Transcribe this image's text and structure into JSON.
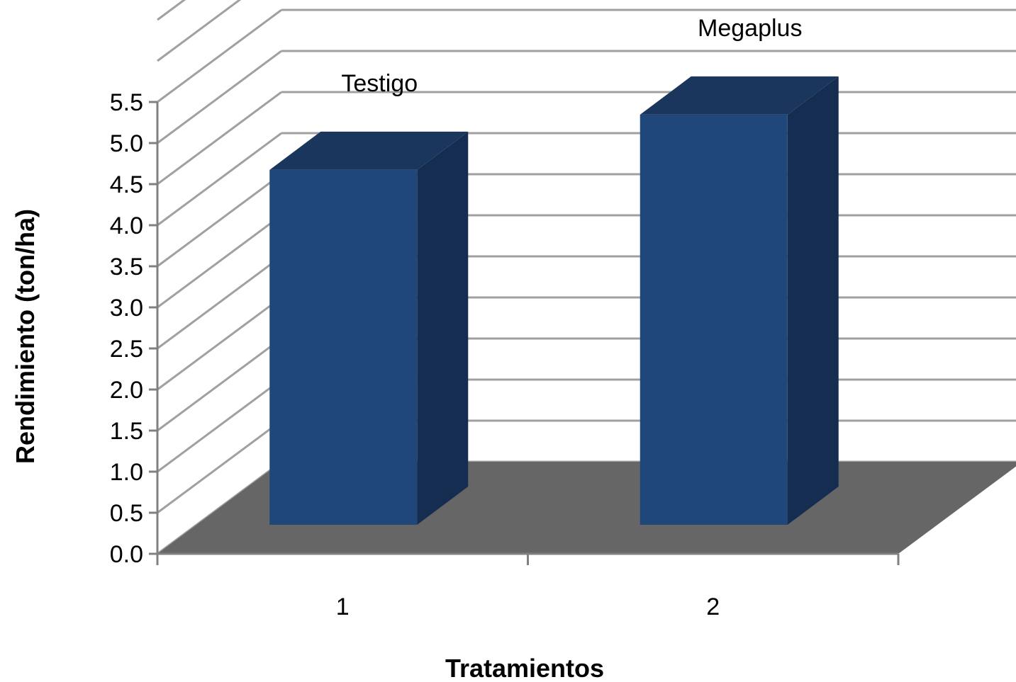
{
  "chart_data": {
    "type": "bar",
    "categories": [
      "1",
      "2"
    ],
    "values": [
      4.5,
      5.2
    ],
    "data_labels": [
      "Testigo",
      "Megaplus"
    ],
    "xlabel": "Tratamientos",
    "ylabel": "Rendimiento (ton/ha)",
    "ylim": [
      0,
      5.5
    ],
    "yticks": [
      "0.0",
      "0.5",
      "1.0",
      "1.5",
      "2.0",
      "2.5",
      "3.0",
      "3.5",
      "4.0",
      "4.5",
      "5.0",
      "5.5"
    ],
    "grid": true,
    "style": "3d-column",
    "colors": {
      "bar_front": "#1f477a",
      "bar_top": "#1a365c",
      "bar_side": "#162d52",
      "floor": "#666666",
      "gridline": "#a0a0a0",
      "axis": "#808080"
    }
  }
}
